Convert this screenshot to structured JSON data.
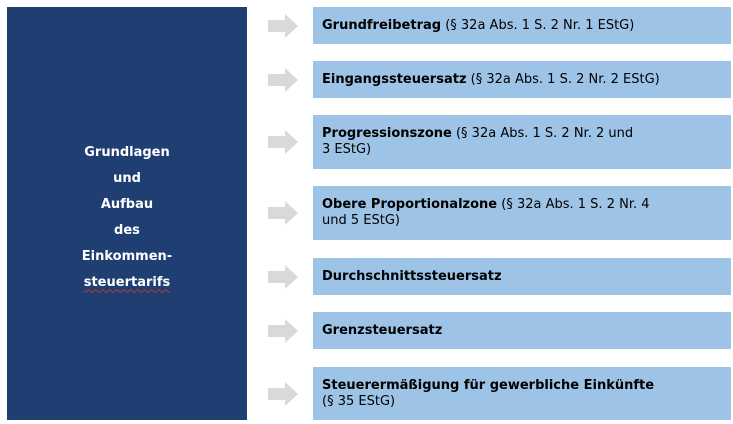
{
  "left_panel": {
    "lines": [
      "Grundlagen",
      "und",
      "Aufbau",
      "des",
      "Einkommen-",
      "steuertarifs"
    ]
  },
  "items": [
    {
      "title": "Grundfreibetrag",
      "detail": " (§ 32a Abs. 1 S. 2 Nr. 1 EStG)",
      "detail2": ""
    },
    {
      "title": "Eingangssteuersatz",
      "detail": " (§ 32a Abs. 1 S. 2 Nr. 2 EStG)",
      "detail2": ""
    },
    {
      "title": "Progressionszone",
      "detail": " (§ 32a Abs. 1 S. 2 Nr. 2 und",
      "detail2": "3 EStG)"
    },
    {
      "title": "Obere Proportionalzone",
      "detail": " (§ 32a Abs. 1 S. 2 Nr. 4",
      "detail2": "und 5 EStG)"
    },
    {
      "title": "Durchschnittssteuersatz",
      "detail": "",
      "detail2": ""
    },
    {
      "title": "Grenzsteuersatz",
      "detail": "",
      "detail2": ""
    },
    {
      "title": "Steuerermäßigung für gewerbliche Einkünfte",
      "detail": "",
      "detail2": "(§ 35 EStG)"
    }
  ],
  "colors": {
    "left_panel": "#1f3f73",
    "item_box": "#9dc3e6",
    "arrow": "#d9d9d9"
  }
}
